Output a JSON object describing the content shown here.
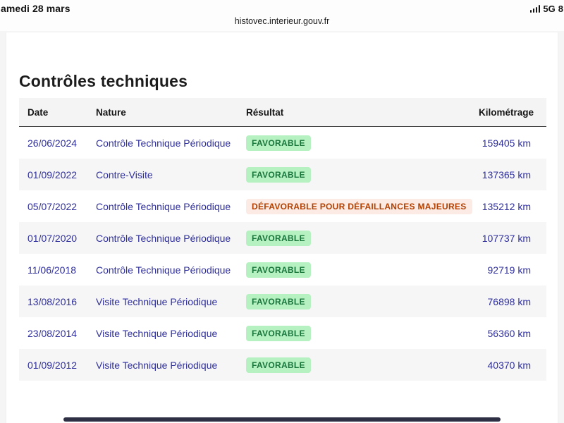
{
  "status_bar": {
    "date": "amedi 28 mars",
    "signal_icon": "signal-bars-icon",
    "network": "5G",
    "battery": "8"
  },
  "url_bar": {
    "url": "histovec.interieur.gouv.fr"
  },
  "page": {
    "title": "Contrôles techniques"
  },
  "table": {
    "columns": [
      "Date",
      "Nature",
      "Résultat",
      "Kilométrage"
    ],
    "rows": [
      {
        "date": "26/06/2024",
        "nature": "Contrôle Technique Périodique",
        "result": "FAVORABLE",
        "result_type": "success",
        "km": "159405 km"
      },
      {
        "date": "01/09/2022",
        "nature": "Contre-Visite",
        "result": "FAVORABLE",
        "result_type": "success",
        "km": "137365 km"
      },
      {
        "date": "05/07/2022",
        "nature": "Contrôle Technique Périodique",
        "result": "DÉFAVORABLE POUR DÉFAILLANCES MAJEURES",
        "result_type": "warning",
        "km": "135212 km"
      },
      {
        "date": "01/07/2020",
        "nature": "Contrôle Technique Périodique",
        "result": "FAVORABLE",
        "result_type": "success",
        "km": "107737 km"
      },
      {
        "date": "11/06/2018",
        "nature": "Contrôle Technique Périodique",
        "result": "FAVORABLE",
        "result_type": "success",
        "km": "92719 km"
      },
      {
        "date": "13/08/2016",
        "nature": "Visite Technique Périodique",
        "result": "FAVORABLE",
        "result_type": "success",
        "km": "76898 km"
      },
      {
        "date": "23/08/2014",
        "nature": "Visite Technique Périodique",
        "result": "FAVORABLE",
        "result_type": "success",
        "km": "56360 km"
      },
      {
        "date": "01/09/2012",
        "nature": "Visite Technique Périodique",
        "result": "FAVORABLE",
        "result_type": "success",
        "km": "40370 km"
      }
    ]
  },
  "colors": {
    "link_blue": "#2f2f9d",
    "success_bg": "#b6f1c1",
    "success_text": "#18753c",
    "warning_bg": "#fcebe4",
    "warning_text": "#b34000",
    "header_text": "#161616",
    "row_alt_bg": "#f6f6f6"
  }
}
